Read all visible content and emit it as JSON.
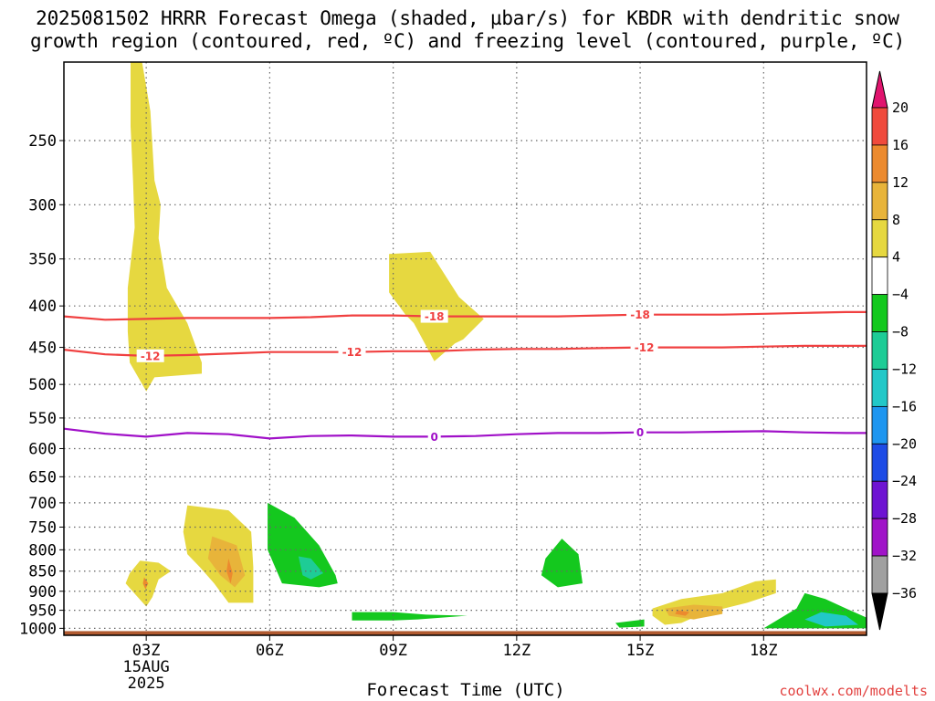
{
  "title_lines": [
    "2025081502 HRRR Forecast Omega (shaded, µbar/s) for KBDR with dendritic snow",
    "growth region (contoured, red, ºC) and freezing level (contoured, purple, ºC)"
  ],
  "credit": "coolwx.com/modelts",
  "chart_data": {
    "type": "time-height contour",
    "xlabel": "Forecast Time (UTC)",
    "x_range_hours_utc": [
      1.0,
      20.5
    ],
    "x_ticks": [
      {
        "hour": 3,
        "label": "03Z",
        "sublabels": [
          "15AUG",
          "2025"
        ]
      },
      {
        "hour": 6,
        "label": "06Z"
      },
      {
        "hour": 9,
        "label": "09Z"
      },
      {
        "hour": 12,
        "label": "12Z"
      },
      {
        "hour": 15,
        "label": "15Z"
      },
      {
        "hour": 18,
        "label": "18Z"
      }
    ],
    "y_scale": "log-pressure",
    "y_range_hPa": [
      200,
      1020
    ],
    "y_ticks": [
      250,
      300,
      350,
      400,
      450,
      500,
      550,
      600,
      650,
      700,
      750,
      800,
      850,
      900,
      950,
      1000
    ],
    "grid": true,
    "colorbar": {
      "ticks": [
        20,
        16,
        12,
        8,
        4,
        -4,
        -8,
        -12,
        -16,
        -20,
        -24,
        -28,
        -32,
        -36
      ],
      "levels": [
        {
          "range": [
            20,
            24
          ],
          "color": "#e0146e"
        },
        {
          "range": [
            16,
            20
          ],
          "color": "#f04a3c"
        },
        {
          "range": [
            12,
            16
          ],
          "color": "#ec8a2e"
        },
        {
          "range": [
            8,
            12
          ],
          "color": "#e8b43a"
        },
        {
          "range": [
            4,
            8
          ],
          "color": "#e6d840"
        },
        {
          "range": [
            -4,
            4
          ],
          "color": "#ffffff"
        },
        {
          "range": [
            -8,
            -4
          ],
          "color": "#14c81e"
        },
        {
          "range": [
            -12,
            -8
          ],
          "color": "#1ecc96"
        },
        {
          "range": [
            -16,
            -12
          ],
          "color": "#22c8c8"
        },
        {
          "range": [
            -20,
            -16
          ],
          "color": "#1e96f0"
        },
        {
          "range": [
            -24,
            -20
          ],
          "color": "#1e4ce6"
        },
        {
          "range": [
            -28,
            -24
          ],
          "color": "#6e14d2"
        },
        {
          "range": [
            -32,
            -28
          ],
          "color": "#a014c8"
        },
        {
          "range": [
            -36,
            -32
          ],
          "color": "#a0a0a0"
        },
        {
          "range": [
            -40,
            -36
          ],
          "color": "#000000"
        }
      ]
    },
    "omega_regions": [
      {
        "name": "upper-updraft-03z",
        "color": "#e6d840",
        "points": [
          [
            2.62,
            200
          ],
          [
            2.9,
            200
          ],
          [
            3.1,
            230
          ],
          [
            3.2,
            280
          ],
          [
            3.35,
            300
          ],
          [
            3.3,
            330
          ],
          [
            3.5,
            380
          ],
          [
            4.0,
            420
          ],
          [
            4.35,
            470
          ],
          [
            4.35,
            485
          ],
          [
            3.2,
            490
          ],
          [
            3.0,
            510
          ],
          [
            2.6,
            470
          ],
          [
            2.55,
            430
          ],
          [
            2.55,
            380
          ],
          [
            2.72,
            320
          ],
          [
            2.68,
            280
          ],
          [
            2.62,
            240
          ]
        ]
      },
      {
        "name": "updraft-10z",
        "color": "#e6d840",
        "points": [
          [
            8.9,
            345
          ],
          [
            9.9,
            343
          ],
          [
            10.6,
            390
          ],
          [
            11.2,
            415
          ],
          [
            10.7,
            440
          ],
          [
            10.5,
            445
          ],
          [
            10.0,
            468
          ],
          [
            9.5,
            420
          ],
          [
            9.3,
            410
          ],
          [
            8.9,
            385
          ]
        ]
      },
      {
        "name": "updraft-03z-low",
        "color": "#e6d840",
        "points": [
          [
            2.6,
            855
          ],
          [
            2.85,
            825
          ],
          [
            3.3,
            830
          ],
          [
            3.6,
            850
          ],
          [
            3.3,
            870
          ],
          [
            3.15,
            915
          ],
          [
            3.0,
            940
          ],
          [
            2.75,
            910
          ],
          [
            2.5,
            880
          ]
        ]
      },
      {
        "name": "updraft-03z-core",
        "color": "#ec8a2e",
        "points": [
          [
            2.95,
            865
          ],
          [
            3.05,
            880
          ],
          [
            2.98,
            895
          ],
          [
            2.92,
            880
          ]
        ]
      },
      {
        "name": "updraft-05z",
        "color": "#e6d840",
        "points": [
          [
            4.0,
            705
          ],
          [
            5.0,
            715
          ],
          [
            5.55,
            760
          ],
          [
            5.6,
            840
          ],
          [
            5.6,
            930
          ],
          [
            5.0,
            930
          ],
          [
            4.65,
            880
          ],
          [
            4.3,
            840
          ],
          [
            4.0,
            810
          ],
          [
            3.9,
            760
          ]
        ]
      },
      {
        "name": "updraft-05z-inner",
        "color": "#e8b43a",
        "points": [
          [
            4.6,
            770
          ],
          [
            5.2,
            790
          ],
          [
            5.4,
            860
          ],
          [
            5.15,
            890
          ],
          [
            4.8,
            860
          ],
          [
            4.5,
            820
          ]
        ]
      },
      {
        "name": "updraft-05z-core",
        "color": "#ec8a2e",
        "points": [
          [
            5.0,
            820
          ],
          [
            5.1,
            855
          ],
          [
            5.05,
            880
          ],
          [
            4.95,
            850
          ]
        ]
      },
      {
        "name": "downdraft-07z",
        "color": "#14c81e",
        "points": [
          [
            5.95,
            700
          ],
          [
            6.6,
            730
          ],
          [
            7.2,
            790
          ],
          [
            7.6,
            860
          ],
          [
            7.65,
            880
          ],
          [
            7.2,
            890
          ],
          [
            6.3,
            880
          ],
          [
            5.95,
            800
          ]
        ]
      },
      {
        "name": "downdraft-07z-core",
        "color": "#1ecc96",
        "points": [
          [
            6.7,
            815
          ],
          [
            7.0,
            820
          ],
          [
            7.3,
            855
          ],
          [
            7.0,
            870
          ],
          [
            6.8,
            860
          ]
        ]
      },
      {
        "name": "downdraft-09z",
        "color": "#14c81e",
        "points": [
          [
            8.0,
            955
          ],
          [
            9.0,
            955
          ],
          [
            9.8,
            962
          ],
          [
            10.8,
            965
          ],
          [
            9.6,
            975
          ],
          [
            9.0,
            978
          ],
          [
            8.0,
            978
          ]
        ]
      },
      {
        "name": "downdraft-13z",
        "color": "#14c81e",
        "points": [
          [
            13.1,
            775
          ],
          [
            13.5,
            810
          ],
          [
            13.6,
            880
          ],
          [
            13.0,
            890
          ],
          [
            12.6,
            860
          ],
          [
            12.7,
            820
          ]
        ]
      },
      {
        "name": "downdraft-14z",
        "color": "#14c81e",
        "points": [
          [
            14.4,
            985
          ],
          [
            15.1,
            975
          ],
          [
            15.1,
            995
          ],
          [
            14.5,
            998
          ]
        ]
      },
      {
        "name": "updraft-16z",
        "color": "#e6d840",
        "points": [
          [
            15.3,
            945
          ],
          [
            16.0,
            920
          ],
          [
            17.0,
            905
          ],
          [
            17.8,
            875
          ],
          [
            18.3,
            870
          ],
          [
            18.3,
            905
          ],
          [
            17.6,
            930
          ],
          [
            16.5,
            960
          ],
          [
            16.0,
            985
          ],
          [
            15.6,
            990
          ],
          [
            15.3,
            965
          ]
        ]
      },
      {
        "name": "updraft-16z-inner",
        "color": "#e8b43a",
        "points": [
          [
            15.6,
            945
          ],
          [
            16.3,
            935
          ],
          [
            17.0,
            940
          ],
          [
            17.0,
            960
          ],
          [
            16.3,
            975
          ],
          [
            15.7,
            965
          ]
        ]
      },
      {
        "name": "updraft-16z-core",
        "color": "#ec8a2e",
        "points": [
          [
            15.9,
            950
          ],
          [
            16.2,
            955
          ],
          [
            16.1,
            965
          ],
          [
            15.85,
            960
          ]
        ]
      },
      {
        "name": "downdraft-19z",
        "color": "#14c81e",
        "points": [
          [
            18.0,
            1000
          ],
          [
            18.8,
            945
          ],
          [
            19.0,
            905
          ],
          [
            19.5,
            920
          ],
          [
            20.0,
            945
          ],
          [
            20.5,
            970
          ],
          [
            20.5,
            1000
          ]
        ]
      },
      {
        "name": "downdraft-19z-core",
        "color": "#22c8c8",
        "points": [
          [
            19.0,
            975
          ],
          [
            19.4,
            955
          ],
          [
            20.0,
            965
          ],
          [
            20.3,
            990
          ],
          [
            19.5,
            995
          ]
        ]
      }
    ],
    "contours": [
      {
        "value": -18,
        "label": "-18",
        "color": "#f04040",
        "points": [
          [
            1,
            412
          ],
          [
            2,
            416
          ],
          [
            3,
            415
          ],
          [
            4,
            414
          ],
          [
            5,
            414
          ],
          [
            6,
            414
          ],
          [
            7,
            413
          ],
          [
            8,
            411
          ],
          [
            9,
            411
          ],
          [
            10,
            412
          ],
          [
            11,
            412
          ],
          [
            12,
            412
          ],
          [
            13,
            412
          ],
          [
            14,
            411
          ],
          [
            15,
            410
          ],
          [
            16,
            410
          ],
          [
            17,
            410
          ],
          [
            18,
            409
          ],
          [
            19,
            408
          ],
          [
            20,
            407
          ],
          [
            20.5,
            407
          ]
        ],
        "label_hours": [
          10.0,
          15.0
        ]
      },
      {
        "value": -12,
        "label": "-12",
        "color": "#f04040",
        "points": [
          [
            1,
            453
          ],
          [
            2,
            459
          ],
          [
            3,
            461
          ],
          [
            4,
            460
          ],
          [
            5,
            458
          ],
          [
            6,
            456
          ],
          [
            7,
            456
          ],
          [
            8,
            456
          ],
          [
            9,
            455
          ],
          [
            10,
            455
          ],
          [
            11,
            453
          ],
          [
            12,
            452
          ],
          [
            13,
            452
          ],
          [
            14,
            451
          ],
          [
            15,
            450
          ],
          [
            16,
            450
          ],
          [
            17,
            450
          ],
          [
            18,
            449
          ],
          [
            19,
            448
          ],
          [
            20,
            448
          ],
          [
            20.5,
            448
          ]
        ],
        "label_hours": [
          3.1,
          8.0,
          15.1
        ]
      },
      {
        "value": 0,
        "label": "0",
        "color": "#a010c8",
        "points": [
          [
            1,
            567
          ],
          [
            2,
            575
          ],
          [
            3,
            580
          ],
          [
            4,
            574
          ],
          [
            5,
            576
          ],
          [
            6,
            583
          ],
          [
            7,
            579
          ],
          [
            8,
            578
          ],
          [
            9,
            580
          ],
          [
            10,
            580
          ],
          [
            11,
            579
          ],
          [
            12,
            576
          ],
          [
            13,
            574
          ],
          [
            14,
            574
          ],
          [
            15,
            573
          ],
          [
            16,
            573
          ],
          [
            17,
            572
          ],
          [
            18,
            571
          ],
          [
            19,
            573
          ],
          [
            20,
            574
          ],
          [
            20.5,
            574
          ]
        ],
        "label_hours": [
          10.0,
          15.0
        ]
      }
    ],
    "terrain": {
      "color": "#b05a30",
      "pressure_hPa": 1008
    }
  }
}
